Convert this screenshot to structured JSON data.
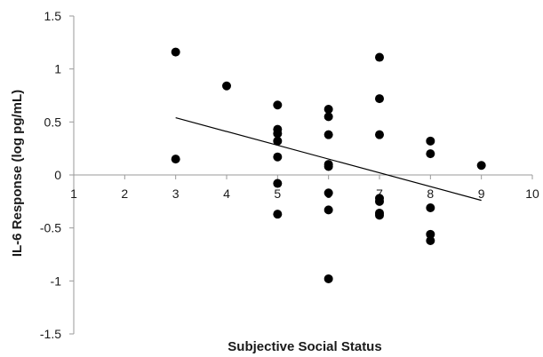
{
  "chart_data": {
    "type": "scatter",
    "title": "",
    "xlabel": "Subjective Social Status",
    "ylabel": "IL-6 Response (log pg/mL)",
    "xlim": [
      1,
      10
    ],
    "ylim": [
      -1.5,
      1.5
    ],
    "x_ticks": [
      1,
      2,
      3,
      4,
      5,
      6,
      7,
      8,
      9,
      10
    ],
    "y_ticks": [
      1.5,
      1,
      0.5,
      0,
      -0.5,
      -1,
      -1.5
    ],
    "x_tick_labels": [
      "1",
      "2",
      "3",
      "4",
      "5",
      "6",
      "7",
      "8",
      "9",
      "10"
    ],
    "y_tick_labels": [
      "1.5",
      "1",
      "0.5",
      "0",
      "-0.5",
      "-1",
      "-1.5"
    ],
    "grid": false,
    "legend": "none",
    "series": [
      {
        "points": [
          {
            "x": 3,
            "y": 1.16
          },
          {
            "x": 3,
            "y": 0.15
          },
          {
            "x": 4,
            "y": 0.84
          },
          {
            "x": 5,
            "y": 0.66
          },
          {
            "x": 5,
            "y": 0.43
          },
          {
            "x": 5,
            "y": 0.39
          },
          {
            "x": 5,
            "y": 0.32
          },
          {
            "x": 5,
            "y": 0.17
          },
          {
            "x": 5,
            "y": -0.08
          },
          {
            "x": 5,
            "y": -0.37
          },
          {
            "x": 6,
            "y": 0.62
          },
          {
            "x": 6,
            "y": 0.55
          },
          {
            "x": 6,
            "y": 0.38
          },
          {
            "x": 6,
            "y": 0.1
          },
          {
            "x": 6,
            "y": 0.08
          },
          {
            "x": 6,
            "y": -0.17
          },
          {
            "x": 6,
            "y": -0.33
          },
          {
            "x": 6,
            "y": -0.98
          },
          {
            "x": 7,
            "y": 1.11
          },
          {
            "x": 7,
            "y": 0.72
          },
          {
            "x": 7,
            "y": 0.38
          },
          {
            "x": 7,
            "y": -0.22
          },
          {
            "x": 7,
            "y": -0.25
          },
          {
            "x": 7,
            "y": -0.36
          },
          {
            "x": 7,
            "y": -0.38
          },
          {
            "x": 8,
            "y": 0.32
          },
          {
            "x": 8,
            "y": 0.2
          },
          {
            "x": 8,
            "y": -0.31
          },
          {
            "x": 8,
            "y": -0.56
          },
          {
            "x": 8,
            "y": -0.62
          },
          {
            "x": 9,
            "y": 0.09
          }
        ],
        "color": "#000000"
      }
    ],
    "trendline": {
      "x": [
        3,
        9
      ],
      "y": [
        0.54,
        -0.24
      ],
      "color": "#000000"
    }
  }
}
